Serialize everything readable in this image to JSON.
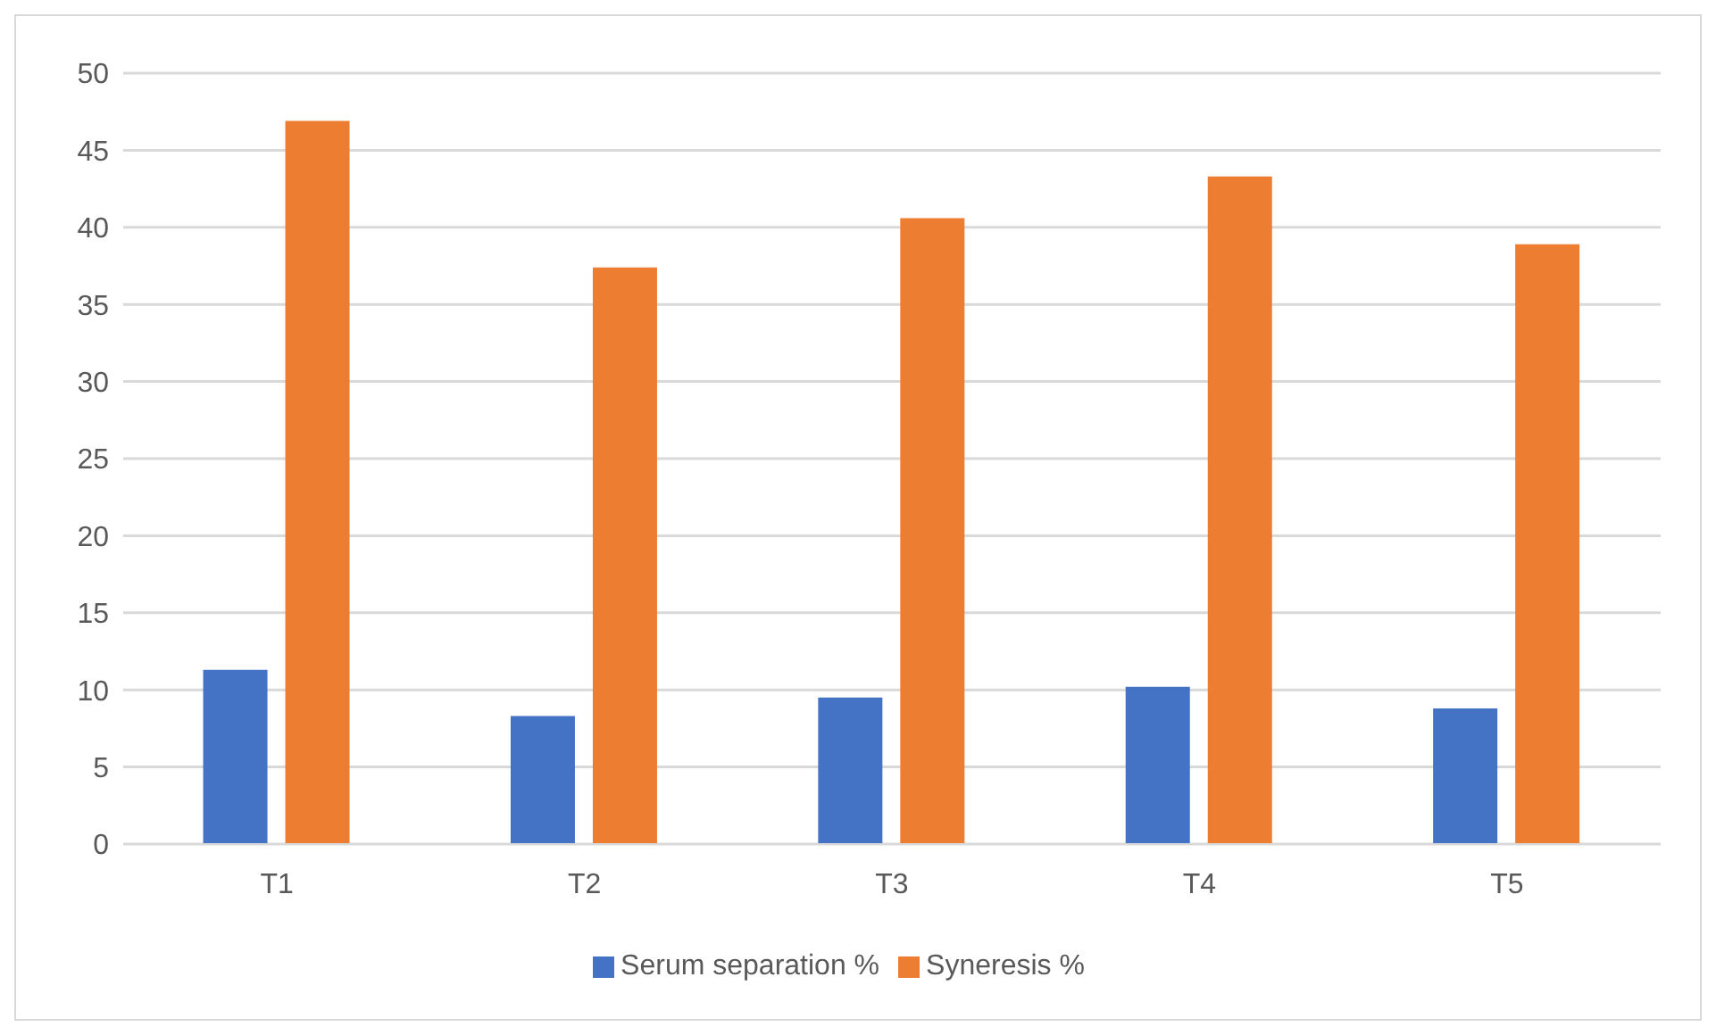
{
  "chart_data": {
    "type": "bar",
    "categories": [
      "T1",
      "T2",
      "T3",
      "T4",
      "T5"
    ],
    "series": [
      {
        "name": "Serum separation %",
        "color": "#4472c4",
        "values": [
          11.3,
          8.3,
          9.5,
          10.2,
          8.8
        ]
      },
      {
        "name": "Syneresis %",
        "color": "#ed7d31",
        "values": [
          46.9,
          37.4,
          40.6,
          43.3,
          38.9
        ]
      }
    ],
    "ylim": [
      0,
      50
    ],
    "yticks": [
      0,
      5,
      10,
      15,
      20,
      25,
      30,
      35,
      40,
      45,
      50
    ],
    "grid": "y",
    "legend": "bottom"
  }
}
